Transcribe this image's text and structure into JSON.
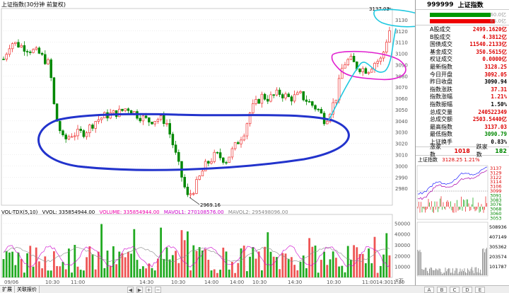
{
  "header": {
    "title": "上证指数(30分钟 前复权)",
    "max_label": "3137.03",
    "min_label": "2969.16"
  },
  "y_axis": [
    "3130",
    "3120",
    "3110",
    "3100",
    "3090",
    "3080",
    "3070",
    "3060",
    "3050",
    "3040",
    "3030",
    "3020",
    "3010",
    "3000",
    "2990",
    "2980"
  ],
  "volume": {
    "title": "VOL-TDX(5,10)",
    "vol": "VVOL: 335854944.00",
    "volume": "VOLUME: 335854944.00",
    "mavol1": "MAVOL1: 270108576.00",
    "mavol2": "MAVOL2: 295498096.00",
    "y_axis": [
      "50000",
      "40000",
      "30000",
      "20000",
      "10000"
    ],
    "unit": "X万"
  },
  "x_axis": [
    "09/06",
    "10:30",
    "11:00",
    "14:30",
    "10:30",
    "14:00",
    "14:00",
    "10:30",
    "14:30",
    "10:30",
    "11:00",
    "14:30",
    "11:30"
  ],
  "side": {
    "code": "999999",
    "name": "上证指数",
    "ratio_top": "60.0亿",
    "ratio_bottom": "65.0亿",
    "stats": [
      {
        "label": "A股成交",
        "value": "2499.1620亿",
        "color": "red"
      },
      {
        "label": "B股成交",
        "value": "4.3812亿",
        "color": "red"
      },
      {
        "label": "国债成交",
        "value": "11540.2133亿",
        "color": "red"
      },
      {
        "label": "基金成交",
        "value": "350.5615亿",
        "color": "red"
      },
      {
        "label": "权证成交",
        "value": "0.0000亿",
        "color": "red"
      },
      {
        "label": "最新指数",
        "value": "3128.25",
        "color": "red"
      },
      {
        "label": "今日开盘",
        "value": "3092.05",
        "color": "red"
      },
      {
        "label": "昨日收盘",
        "value": "3090.94",
        "color": "blk"
      },
      {
        "label": "指数涨跌",
        "value": "37.31",
        "color": "red"
      },
      {
        "label": "指数涨幅",
        "value": "1.21%",
        "color": "red"
      },
      {
        "label": "指数振幅",
        "value": "1.50%",
        "color": "blk"
      },
      {
        "label": "总成交量",
        "value": "240522349",
        "color": "red"
      },
      {
        "label": "总成交额",
        "value": "2503.5440亿",
        "color": "red"
      },
      {
        "label": "最高指数",
        "value": "3137.03",
        "color": "red"
      },
      {
        "label": "最低指数",
        "value": "3090.79",
        "color": "green"
      },
      {
        "label": "上证换手",
        "value": "0.83%",
        "color": "blk"
      }
    ],
    "up_label": "涨家数",
    "up_count": "1018",
    "down_label": "跌家数",
    "down_count": "182",
    "mini_title": "上证指数",
    "mini_info": "3128.25 1.21%",
    "mini_y": [
      "3137",
      "3129",
      "3122",
      "3114",
      "3106",
      "3099",
      "3091",
      "3083",
      "3076",
      "3068",
      "3060",
      "3053"
    ],
    "mini_vol": [
      "508936",
      "407149",
      "305362",
      "203574",
      "101787"
    ]
  },
  "bottom": {
    "tabs": [
      "扩展",
      "关联报价"
    ],
    "right_tabs": [
      "A",
      "B",
      "C",
      "D",
      "E"
    ]
  }
}
